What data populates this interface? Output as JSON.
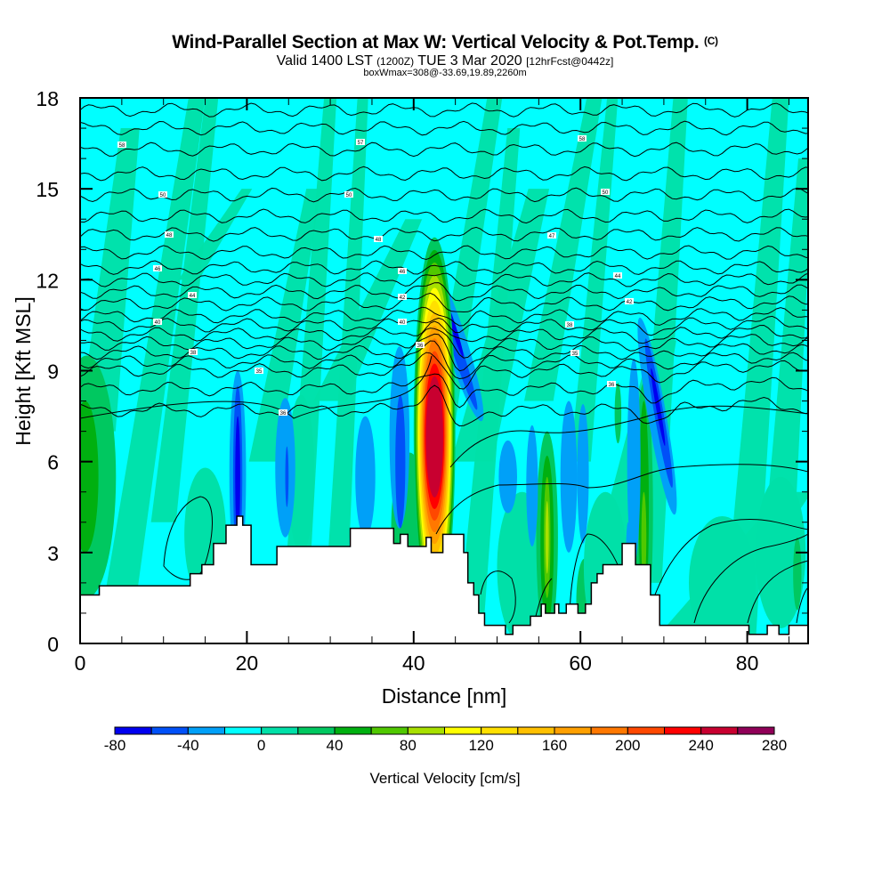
{
  "header": {
    "title": "Wind-Parallel Section at Max W: Vertical Velocity & Pot.Temp.",
    "copyright": "(C)",
    "valid_prefix": "Valid 1400 LST",
    "valid_utc": "(1200Z)",
    "valid_date": "TUE 3 Mar 2020",
    "forecast": "[12hrFcst@0442z]",
    "boxinfo": "boxWmax=308@-33.69,19.89,2260m"
  },
  "chart_data": {
    "type": "heatmap",
    "title": "Wind-Parallel Section at Max W: Vertical Velocity & Pot.Temp.",
    "xlabel": "Distance [nm]",
    "ylabel": "Height [Kft MSL]",
    "xlim": [
      0,
      87.3
    ],
    "ylim": [
      0,
      18
    ],
    "xticks": [
      0,
      20,
      40,
      60,
      80
    ],
    "xtick_labels": [
      "0",
      "20",
      "40",
      "60",
      "80"
    ],
    "yticks": [
      0,
      3,
      6,
      9,
      12,
      15,
      18
    ],
    "ytick_labels": [
      "0",
      "3",
      "6",
      "9",
      "12",
      "15",
      "18"
    ],
    "colorbar": {
      "label": "Vertical Velocity [cm/s]",
      "tick_values": [
        -80,
        -40,
        0,
        40,
        80,
        120,
        160,
        200,
        240,
        280
      ],
      "tick_labels": [
        "-80",
        "-40",
        "0",
        "40",
        "80",
        "120",
        "160",
        "200",
        "240",
        "280"
      ],
      "bin_edges": [
        -80,
        -60,
        -40,
        -20,
        0,
        20,
        40,
        60,
        80,
        100,
        120,
        140,
        160,
        180,
        200,
        220,
        240,
        260,
        280
      ],
      "colors": [
        "#0000f0",
        "#0050f8",
        "#00a0f8",
        "#00ffff",
        "#00e0a8",
        "#00c860",
        "#00b010",
        "#50c800",
        "#a8e000",
        "#ffff00",
        "#ffe000",
        "#ffc000",
        "#ffa000",
        "#ff7800",
        "#ff4800",
        "#ff0000",
        "#c80030",
        "#900058"
      ]
    },
    "terrain_kft": {
      "x_nm": [
        0,
        2.3,
        12.5,
        13.2,
        14,
        14.6,
        15.3,
        16,
        17.5,
        18.8,
        19.5,
        20.5,
        22.8,
        23.6,
        24.4,
        30.4,
        32.4,
        37.6,
        38.4,
        39.3,
        40.5,
        41.5,
        42.1,
        42.7,
        43.5,
        45.2,
        46.0,
        46.5,
        47.2,
        47.8,
        48.5,
        50.2,
        51.0,
        51.9,
        54.0,
        55.3,
        55.8,
        56.9,
        57.4,
        58.3,
        59.2,
        59.7,
        60.6,
        61.3,
        62.0,
        62.7,
        65.0,
        65.7,
        66.6,
        67.2,
        68.4,
        69.5,
        73.3,
        74.2,
        80.2,
        82.4,
        83.8,
        85.0,
        87.3
      ],
      "y_kft": [
        1.6,
        1.9,
        1.9,
        2.3,
        2.3,
        2.6,
        2.6,
        3.3,
        3.9,
        4.2,
        3.9,
        2.6,
        2.6,
        3.2,
        3.2,
        3.2,
        3.8,
        3.3,
        3.6,
        3.2,
        3.2,
        3.5,
        3.0,
        3.0,
        3.6,
        3.6,
        3.0,
        2.0,
        1.6,
        1.0,
        0.6,
        0.6,
        0.3,
        0.6,
        0.9,
        1.3,
        1.0,
        1.3,
        1.0,
        1.3,
        1.3,
        1.0,
        1.3,
        2.0,
        2.3,
        2.6,
        3.3,
        3.3,
        2.6,
        2.6,
        1.6,
        0.6,
        0.6,
        0.6,
        0.3,
        0.6,
        0.3,
        0.6,
        0.3
      ]
    },
    "features": [
      {
        "name": "main-updraft",
        "x_nm": 42.5,
        "z_kft": 7.0,
        "max_w_cms": 240
      },
      {
        "name": "downdraft-west",
        "x_nm": 19,
        "z_kft": 5.8,
        "min_w_cms": -80
      },
      {
        "name": "downdraft-lee",
        "x_nm": 44.5,
        "z_kft": 10,
        "min_w_cms": -60
      },
      {
        "name": "updraft-56nm",
        "x_nm": 56,
        "z_kft": 3.5,
        "max_w_cms": 80
      },
      {
        "name": "updraft-67nm",
        "x_nm": 67.5,
        "z_kft": 4,
        "max_w_cms": 80
      },
      {
        "name": "downdraft-69nm",
        "x_nm": 69,
        "z_kft": 7.5,
        "min_w_cms": -60
      },
      {
        "name": "updraft-left-edge",
        "x_nm": 0.5,
        "z_kft": 5.5,
        "max_w_cms": 60
      }
    ],
    "contour_labels": [
      "58",
      "57",
      "58",
      "50",
      "50",
      "50",
      "48",
      "48",
      "47",
      "46",
      "46",
      "44",
      "44",
      "42",
      "42",
      "40",
      "40",
      "38",
      "38",
      "36",
      "35",
      "35",
      "36",
      "36"
    ]
  }
}
